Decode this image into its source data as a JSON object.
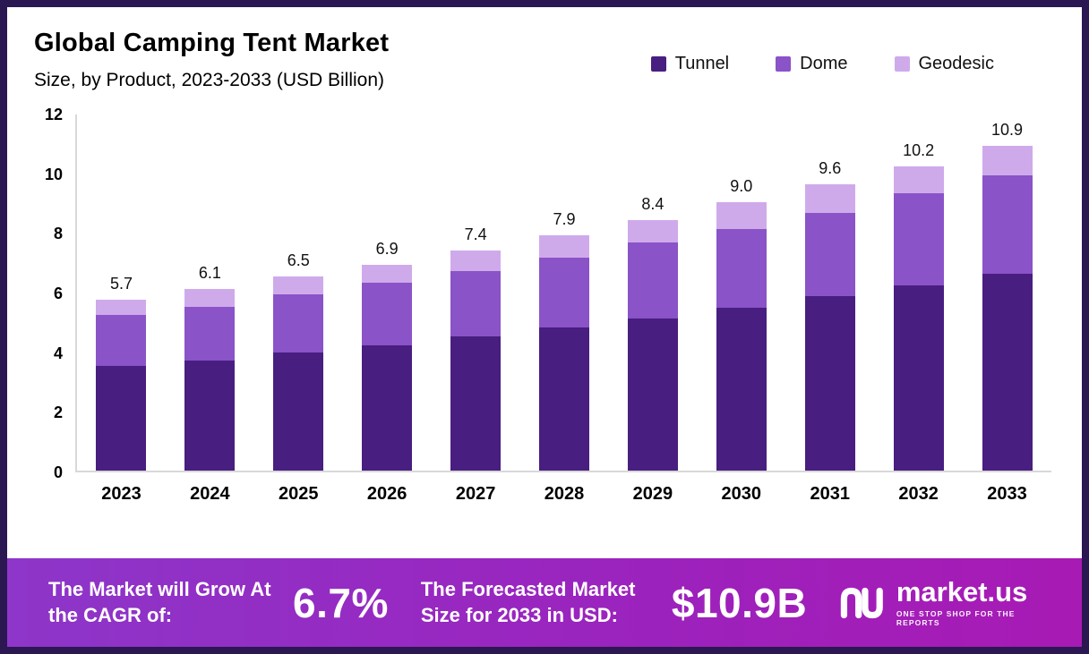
{
  "header": {
    "title": "Global Camping Tent Market",
    "subtitle": "Size, by Product, 2023-2033 (USD Billion)"
  },
  "chart_data": {
    "type": "bar",
    "stacked": true,
    "title": "Global Camping Tent Market Size, by Product, 2023-2033 (USD Billion)",
    "categories": [
      "2023",
      "2024",
      "2025",
      "2026",
      "2027",
      "2028",
      "2029",
      "2030",
      "2031",
      "2032",
      "2033"
    ],
    "series": [
      {
        "name": "Tunnel",
        "color": "#481e80",
        "values": [
          3.5,
          3.7,
          3.95,
          4.2,
          4.5,
          4.8,
          5.1,
          5.45,
          5.85,
          6.2,
          6.6
        ]
      },
      {
        "name": "Dome",
        "color": "#8a53c8",
        "values": [
          1.7,
          1.8,
          1.95,
          2.1,
          2.2,
          2.35,
          2.55,
          2.65,
          2.8,
          3.1,
          3.3
        ]
      },
      {
        "name": "Geodesic",
        "color": "#cfaaeb",
        "values": [
          0.5,
          0.6,
          0.6,
          0.6,
          0.7,
          0.75,
          0.75,
          0.9,
          0.95,
          0.9,
          1.0
        ]
      }
    ],
    "totals": [
      5.7,
      6.1,
      6.5,
      6.9,
      7.4,
      7.9,
      8.4,
      9.0,
      9.6,
      10.2,
      10.9
    ],
    "ylim": [
      0,
      12
    ],
    "yticks": [
      0,
      2,
      4,
      6,
      8,
      10,
      12
    ],
    "grid": false,
    "legend_position": "top-right"
  },
  "footer": {
    "cagr_label": "The Market will Grow At the CAGR of:",
    "cagr_value": "6.7%",
    "forecast_label": "The Forecasted Market Size for 2033 in USD:",
    "forecast_value": "$10.9B",
    "brand": "market.us",
    "brand_tagline": "ONE STOP SHOP FOR THE REPORTS"
  },
  "colors": {
    "page_border": "#2b1752",
    "axis_line": "#d8d8d8",
    "footer_gradient_start": "#8d36c9",
    "footer_gradient_end": "#a81ab4"
  }
}
